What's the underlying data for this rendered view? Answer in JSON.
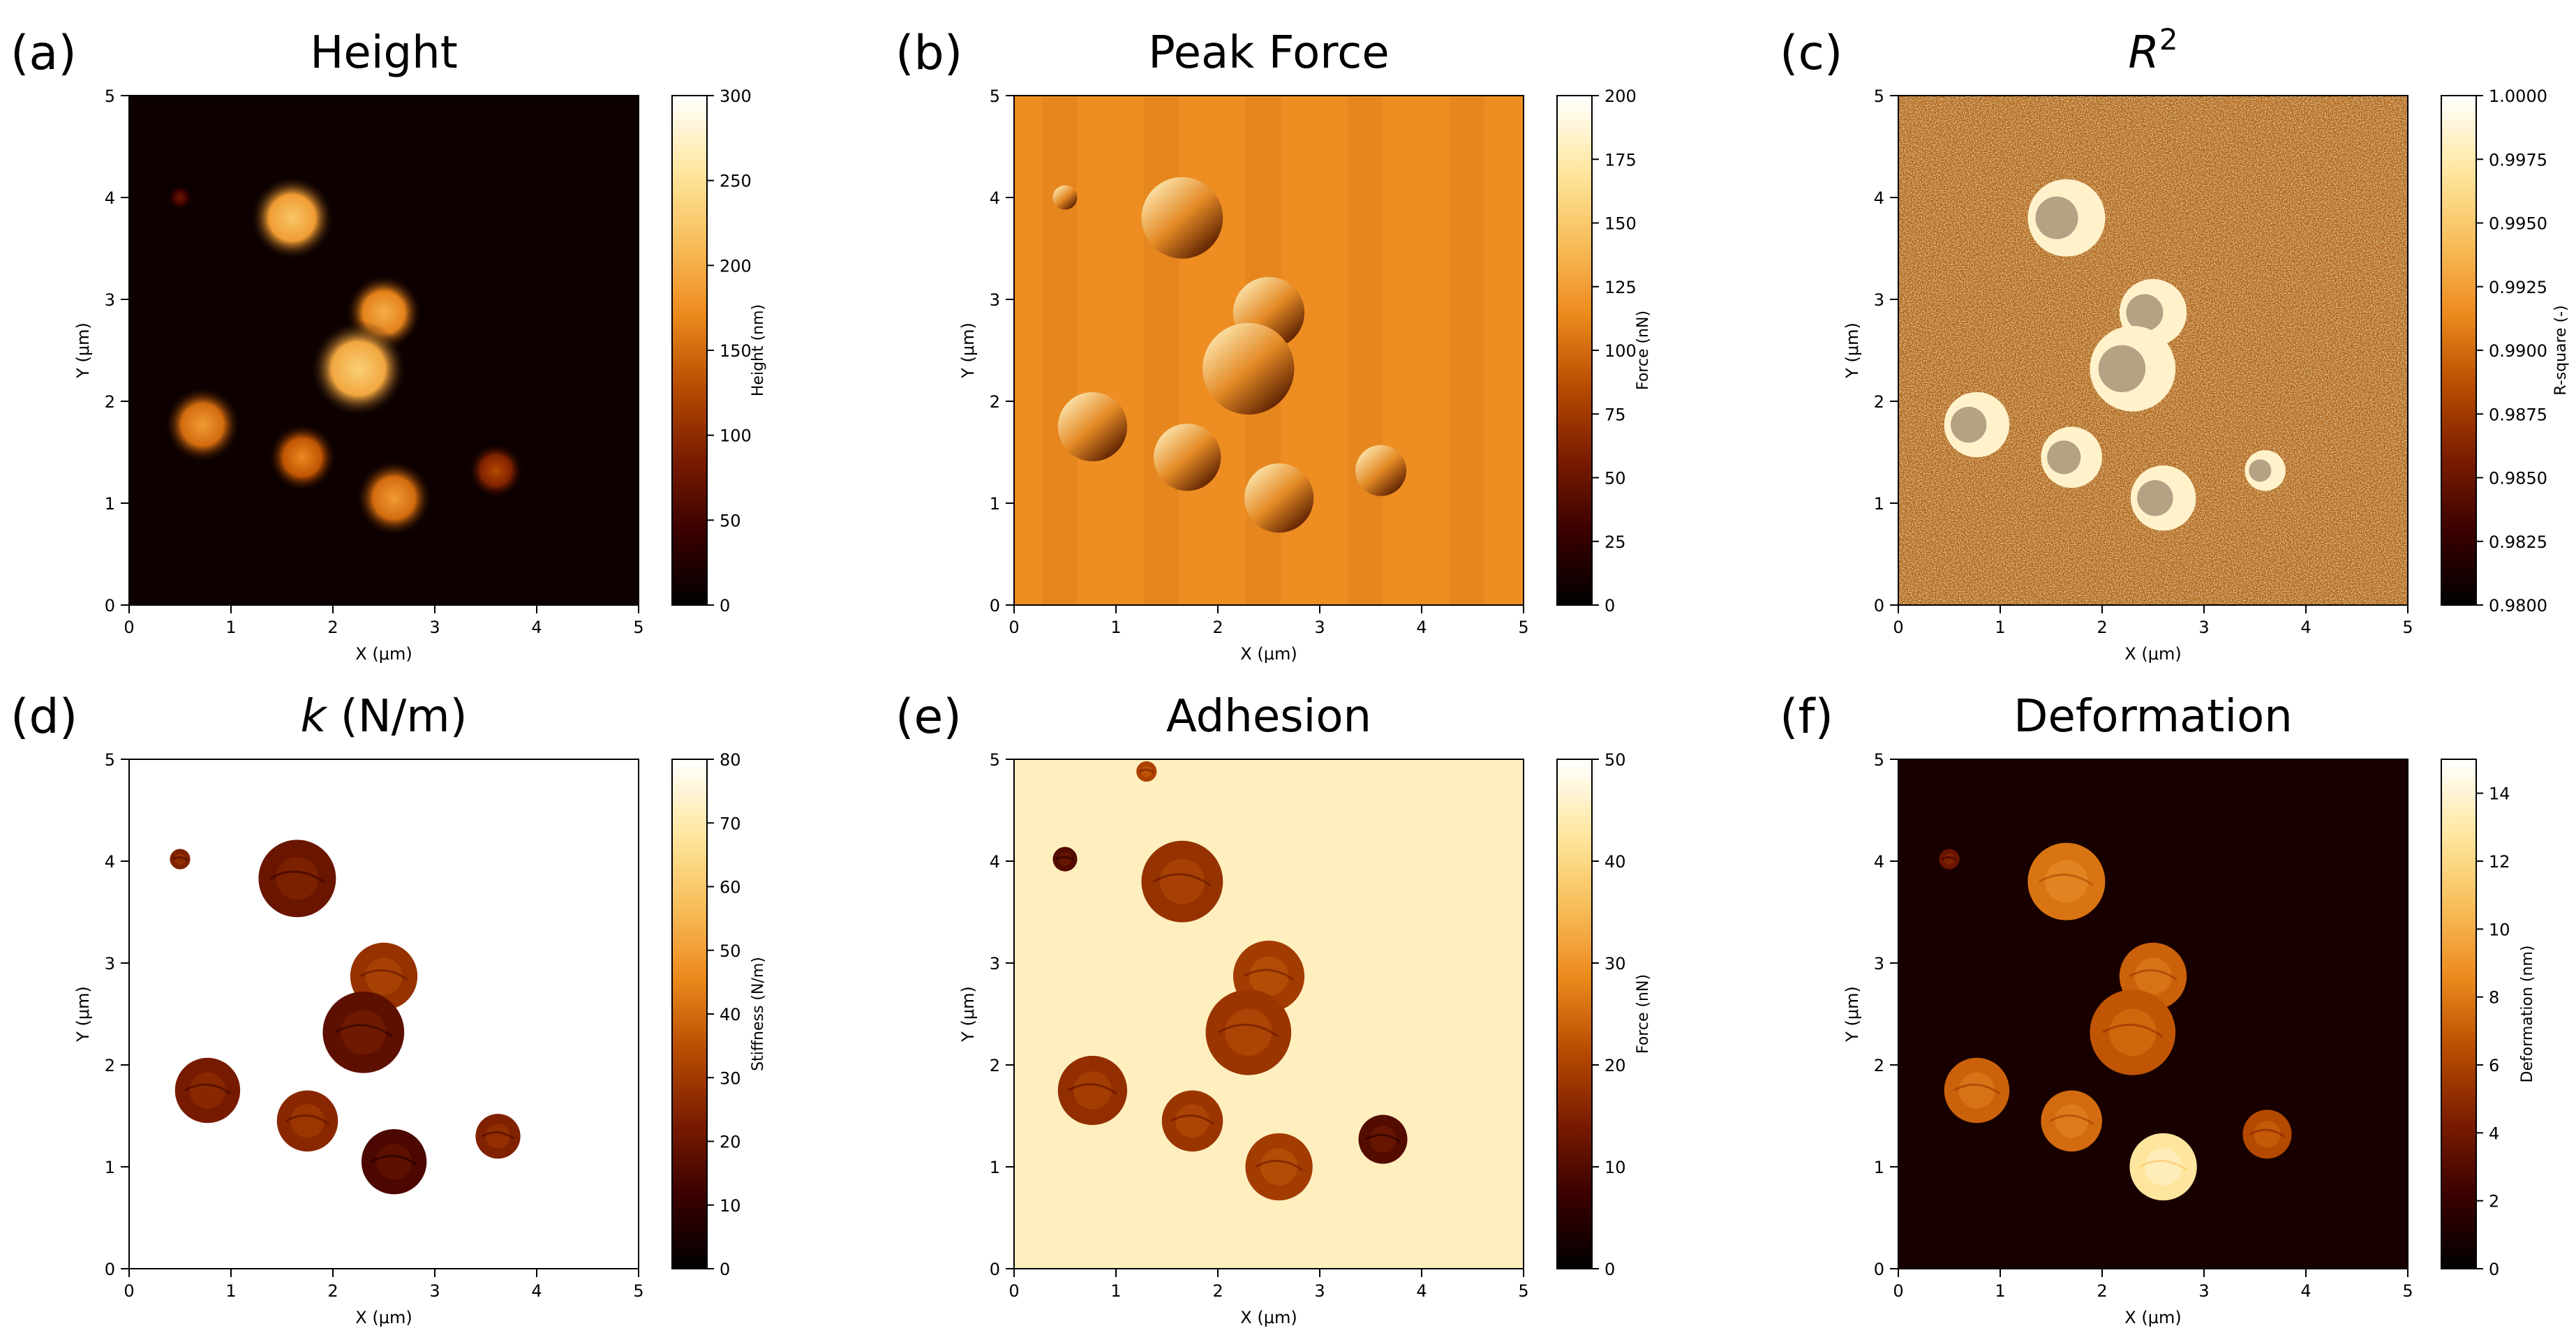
{
  "colormap": [
    "#000000",
    "#3a0000",
    "#7a1c00",
    "#b84c00",
    "#ec8a1e",
    "#f7bf5b",
    "#ffe8a3",
    "#ffffff"
  ],
  "chart_data": [
    {
      "type": "heatmap",
      "panel_label": "(a)",
      "title": "Height",
      "xlabel": "X (μm)",
      "ylabel": "Y (μm)",
      "xlim": [
        0,
        5
      ],
      "ylim": [
        0,
        5
      ],
      "xticks": [
        "0",
        "1",
        "2",
        "3",
        "4",
        "5"
      ],
      "yticks": [
        "0",
        "1",
        "2",
        "3",
        "4",
        "5"
      ],
      "colorbar": {
        "label": "Height (nm)",
        "range": [
          0,
          300
        ],
        "ticks": [
          "0",
          "50",
          "100",
          "150",
          "200",
          "250",
          "300"
        ]
      },
      "background_value": 0.03,
      "style": "smooth",
      "features": [
        {
          "x": 1.6,
          "y": 3.8,
          "r": 0.33,
          "v": 0.62
        },
        {
          "x": 2.5,
          "y": 2.87,
          "r": 0.3,
          "v": 0.55
        },
        {
          "x": 2.25,
          "y": 2.32,
          "r": 0.38,
          "v": 0.65
        },
        {
          "x": 0.72,
          "y": 1.77,
          "r": 0.3,
          "v": 0.5
        },
        {
          "x": 1.7,
          "y": 1.45,
          "r": 0.27,
          "v": 0.45
        },
        {
          "x": 2.6,
          "y": 1.05,
          "r": 0.3,
          "v": 0.5
        },
        {
          "x": 3.6,
          "y": 1.32,
          "r": 0.22,
          "v": 0.3
        },
        {
          "x": 0.5,
          "y": 4.0,
          "r": 0.1,
          "v": 0.15
        }
      ]
    },
    {
      "type": "heatmap",
      "panel_label": "(b)",
      "title": "Peak Force",
      "xlabel": "X (μm)",
      "ylabel": "Y (μm)",
      "xlim": [
        0,
        5
      ],
      "ylim": [
        0,
        5
      ],
      "xticks": [
        "0",
        "1",
        "2",
        "3",
        "4",
        "5"
      ],
      "yticks": [
        "0",
        "1",
        "2",
        "3",
        "4",
        "5"
      ],
      "colorbar": {
        "label": "Force (nN)",
        "range": [
          0,
          200
        ],
        "ticks": [
          "0",
          "25",
          "50",
          "75",
          "100",
          "125",
          "150",
          "175",
          "200"
        ]
      },
      "background_value": 0.58,
      "style": "relief",
      "features": [
        {
          "x": 1.65,
          "y": 3.8,
          "r": 0.4,
          "v": 0.0
        },
        {
          "x": 2.5,
          "y": 2.87,
          "r": 0.35,
          "v": 0.0
        },
        {
          "x": 2.3,
          "y": 2.32,
          "r": 0.45,
          "v": 0.0
        },
        {
          "x": 0.77,
          "y": 1.75,
          "r": 0.34,
          "v": 0.0
        },
        {
          "x": 1.7,
          "y": 1.45,
          "r": 0.33,
          "v": 0.0
        },
        {
          "x": 2.6,
          "y": 1.05,
          "r": 0.34,
          "v": 0.0
        },
        {
          "x": 3.6,
          "y": 1.32,
          "r": 0.25,
          "v": 0.0
        },
        {
          "x": 0.5,
          "y": 4.0,
          "r": 0.12,
          "v": 0.0
        }
      ]
    },
    {
      "type": "heatmap",
      "panel_label": "(c)",
      "title": "R",
      "title_superscript": "2",
      "xlabel": "X (μm)",
      "ylabel": "Y (μm)",
      "xlim": [
        0,
        5
      ],
      "ylim": [
        0,
        5
      ],
      "xticks": [
        "0",
        "1",
        "2",
        "3",
        "4",
        "5"
      ],
      "yticks": [
        "0",
        "1",
        "2",
        "3",
        "4",
        "5"
      ],
      "colorbar": {
        "label": "R-square (-)",
        "range": [
          0.98,
          1.0
        ],
        "ticks": [
          "0.9800",
          "0.9825",
          "0.9850",
          "0.9875",
          "0.9900",
          "0.9925",
          "0.9950",
          "0.9975",
          "1.0000"
        ]
      },
      "background_value": 0.55,
      "style": "noise",
      "features": [
        {
          "x": 1.65,
          "y": 3.8,
          "r": 0.38,
          "v": 0.92
        },
        {
          "x": 2.5,
          "y": 2.87,
          "r": 0.33,
          "v": 0.92
        },
        {
          "x": 2.3,
          "y": 2.32,
          "r": 0.42,
          "v": 0.92
        },
        {
          "x": 0.77,
          "y": 1.77,
          "r": 0.32,
          "v": 0.92
        },
        {
          "x": 1.7,
          "y": 1.45,
          "r": 0.3,
          "v": 0.92
        },
        {
          "x": 2.6,
          "y": 1.05,
          "r": 0.32,
          "v": 0.92
        },
        {
          "x": 3.6,
          "y": 1.32,
          "r": 0.2,
          "v": 0.92
        }
      ]
    },
    {
      "type": "heatmap",
      "panel_label": "(d)",
      "title": "k",
      "title_suffix": " (N/m)",
      "xlabel": "X (μm)",
      "ylabel": "Y (μm)",
      "xlim": [
        0,
        5
      ],
      "ylim": [
        0,
        5
      ],
      "xticks": [
        "0",
        "1",
        "2",
        "3",
        "4",
        "5"
      ],
      "yticks": [
        "0",
        "1",
        "2",
        "3",
        "4",
        "5"
      ],
      "colorbar": {
        "label": "Stiffness (N/m)",
        "range": [
          0,
          80
        ],
        "ticks": [
          "0",
          "10",
          "20",
          "30",
          "40",
          "50",
          "60",
          "70",
          "80"
        ]
      },
      "background_value": 1.0,
      "style": "disks",
      "features": [
        {
          "x": 1.65,
          "y": 3.83,
          "r": 0.38,
          "v": 0.25
        },
        {
          "x": 2.5,
          "y": 2.87,
          "r": 0.33,
          "v": 0.35
        },
        {
          "x": 2.3,
          "y": 2.32,
          "r": 0.4,
          "v": 0.22
        },
        {
          "x": 0.77,
          "y": 1.75,
          "r": 0.32,
          "v": 0.28
        },
        {
          "x": 1.75,
          "y": 1.45,
          "r": 0.3,
          "v": 0.32
        },
        {
          "x": 2.6,
          "y": 1.05,
          "r": 0.32,
          "v": 0.18
        },
        {
          "x": 3.62,
          "y": 1.3,
          "r": 0.22,
          "v": 0.3
        },
        {
          "x": 0.5,
          "y": 4.02,
          "r": 0.1,
          "v": 0.3
        }
      ]
    },
    {
      "type": "heatmap",
      "panel_label": "(e)",
      "title": "Adhesion",
      "xlabel": "X (μm)",
      "ylabel": "Y (μm)",
      "xlim": [
        0,
        5
      ],
      "ylim": [
        0,
        5
      ],
      "xticks": [
        "0",
        "1",
        "2",
        "3",
        "4",
        "5"
      ],
      "yticks": [
        "0",
        "1",
        "2",
        "3",
        "4",
        "5"
      ],
      "colorbar": {
        "label": "Force (nN)",
        "range": [
          0,
          50
        ],
        "ticks": [
          "0",
          "10",
          "20",
          "30",
          "40",
          "50"
        ]
      },
      "background_value": 0.9,
      "style": "disks",
      "features": [
        {
          "x": 1.65,
          "y": 3.8,
          "r": 0.4,
          "v": 0.35
        },
        {
          "x": 2.5,
          "y": 2.87,
          "r": 0.35,
          "v": 0.38
        },
        {
          "x": 2.3,
          "y": 2.32,
          "r": 0.42,
          "v": 0.36
        },
        {
          "x": 0.77,
          "y": 1.75,
          "r": 0.34,
          "v": 0.34
        },
        {
          "x": 1.75,
          "y": 1.45,
          "r": 0.3,
          "v": 0.36
        },
        {
          "x": 2.6,
          "y": 1.0,
          "r": 0.33,
          "v": 0.38
        },
        {
          "x": 3.62,
          "y": 1.27,
          "r": 0.24,
          "v": 0.2
        },
        {
          "x": 0.5,
          "y": 4.02,
          "r": 0.12,
          "v": 0.2
        },
        {
          "x": 1.3,
          "y": 4.88,
          "r": 0.1,
          "v": 0.4
        }
      ]
    },
    {
      "type": "heatmap",
      "panel_label": "(f)",
      "title": "Deformation",
      "xlabel": "X (μm)",
      "ylabel": "Y (μm)",
      "xlim": [
        0,
        5
      ],
      "ylim": [
        0,
        5
      ],
      "xticks": [
        "0",
        "1",
        "2",
        "3",
        "4",
        "5"
      ],
      "yticks": [
        "0",
        "1",
        "2",
        "3",
        "4",
        "5"
      ],
      "colorbar": {
        "label": "Deformation (nm)",
        "range": [
          0,
          15
        ],
        "ticks": [
          "0",
          "2",
          "4",
          "6",
          "8",
          "10",
          "12",
          "14"
        ]
      },
      "background_value": 0.06,
      "style": "disks",
      "features": [
        {
          "x": 1.65,
          "y": 3.8,
          "r": 0.38,
          "v": 0.52
        },
        {
          "x": 2.5,
          "y": 2.87,
          "r": 0.33,
          "v": 0.48
        },
        {
          "x": 2.3,
          "y": 2.32,
          "r": 0.42,
          "v": 0.45
        },
        {
          "x": 0.77,
          "y": 1.75,
          "r": 0.32,
          "v": 0.48
        },
        {
          "x": 1.7,
          "y": 1.45,
          "r": 0.3,
          "v": 0.5
        },
        {
          "x": 2.6,
          "y": 1.0,
          "r": 0.33,
          "v": 0.85
        },
        {
          "x": 3.62,
          "y": 1.32,
          "r": 0.24,
          "v": 0.42
        },
        {
          "x": 0.5,
          "y": 4.02,
          "r": 0.1,
          "v": 0.25
        }
      ]
    }
  ]
}
